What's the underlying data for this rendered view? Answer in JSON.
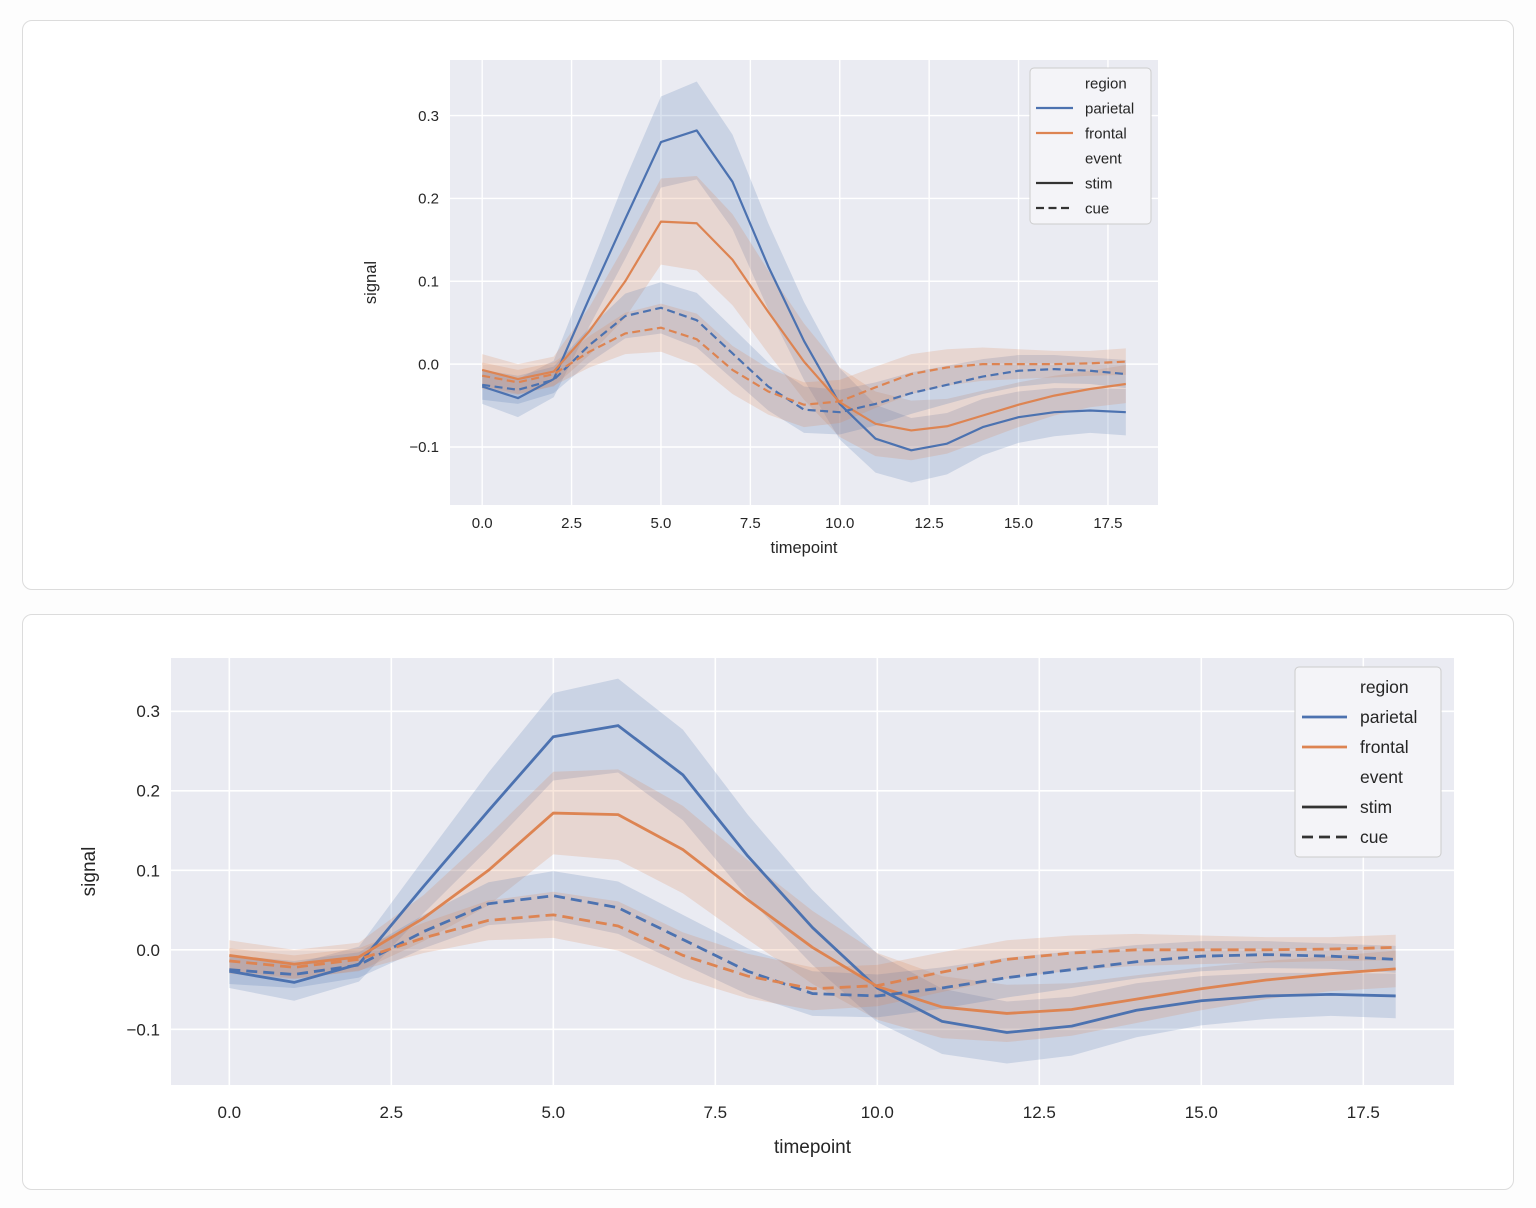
{
  "page": {
    "background": "#fdfdfd",
    "card_background": "#ffffff",
    "card_border": "#dcdcdc"
  },
  "colors": {
    "plot_background": "#eaebf2",
    "gridline": "#ffffff",
    "text": "#262626",
    "parietal": "#4c72b0",
    "frontal": "#dd8452",
    "legend_handle_neutral": "#333333",
    "legend_background": "#f4f4f8",
    "legend_border": "#cccccc",
    "band_opacity": 0.2
  },
  "chart_data": {
    "type": "line",
    "title": "",
    "xlabel": "timepoint",
    "ylabel": "signal",
    "grid": true,
    "xlim": [
      -0.9,
      18.9
    ],
    "ylim": [
      -0.17,
      0.367
    ],
    "x_tick_labels": [
      "0.0",
      "2.5",
      "5.0",
      "7.5",
      "10.0",
      "12.5",
      "15.0",
      "17.5"
    ],
    "x_tick_values": [
      0,
      2.5,
      5,
      7.5,
      10,
      12.5,
      15,
      17.5
    ],
    "y_tick_labels": [
      "0.3",
      "0.2",
      "0.1",
      "0.0",
      "−0.1"
    ],
    "y_tick_values": [
      0.3,
      0.2,
      0.1,
      0.0,
      -0.1
    ],
    "x": [
      0,
      1,
      2,
      3,
      4,
      5,
      6,
      7,
      8,
      9,
      10,
      11,
      12,
      13,
      14,
      15,
      16,
      17,
      18
    ],
    "series": [
      {
        "name": "parietal-stim",
        "region": "parietal",
        "event": "stim",
        "color": "#4c72b0",
        "style": "solid",
        "mean": [
          -0.027,
          -0.041,
          -0.018,
          0.08,
          0.175,
          0.268,
          0.282,
          0.22,
          0.118,
          0.028,
          -0.048,
          -0.09,
          -0.104,
          -0.096,
          -0.076,
          -0.064,
          -0.058,
          -0.056,
          -0.058
        ],
        "ci": [
          0.021,
          0.023,
          0.022,
          0.034,
          0.048,
          0.055,
          0.059,
          0.057,
          0.052,
          0.047,
          0.043,
          0.041,
          0.039,
          0.037,
          0.034,
          0.031,
          0.029,
          0.027,
          0.028
        ]
      },
      {
        "name": "frontal-stim",
        "region": "frontal",
        "event": "stim",
        "color": "#dd8452",
        "style": "solid",
        "mean": [
          -0.007,
          -0.018,
          -0.009,
          0.04,
          0.1,
          0.172,
          0.17,
          0.126,
          0.063,
          0.003,
          -0.046,
          -0.072,
          -0.08,
          -0.075,
          -0.062,
          -0.049,
          -0.038,
          -0.03,
          -0.024
        ],
        "ci": [
          0.019,
          0.018,
          0.018,
          0.029,
          0.044,
          0.052,
          0.057,
          0.055,
          0.05,
          0.046,
          0.042,
          0.039,
          0.036,
          0.033,
          0.03,
          0.027,
          0.024,
          0.022,
          0.023
        ]
      },
      {
        "name": "parietal-cue",
        "region": "parietal",
        "event": "cue",
        "color": "#4c72b0",
        "style": "dashed",
        "mean": [
          -0.025,
          -0.031,
          -0.019,
          0.023,
          0.058,
          0.068,
          0.053,
          0.013,
          -0.027,
          -0.055,
          -0.058,
          -0.048,
          -0.035,
          -0.025,
          -0.015,
          -0.008,
          -0.006,
          -0.008,
          -0.012
        ],
        "ci": [
          0.018,
          0.017,
          0.016,
          0.021,
          0.027,
          0.031,
          0.033,
          0.031,
          0.029,
          0.028,
          0.027,
          0.026,
          0.025,
          0.023,
          0.021,
          0.019,
          0.017,
          0.016,
          0.017
        ]
      },
      {
        "name": "frontal-cue",
        "region": "frontal",
        "event": "cue",
        "color": "#dd8452",
        "style": "dashed",
        "mean": [
          -0.014,
          -0.022,
          -0.012,
          0.015,
          0.037,
          0.044,
          0.03,
          -0.007,
          -0.033,
          -0.049,
          -0.045,
          -0.028,
          -0.012,
          -0.004,
          0.0,
          0.0,
          0.0,
          0.001,
          0.003
        ],
        "ci": [
          0.016,
          0.015,
          0.014,
          0.019,
          0.025,
          0.029,
          0.031,
          0.029,
          0.028,
          0.027,
          0.026,
          0.025,
          0.024,
          0.022,
          0.02,
          0.018,
          0.016,
          0.015,
          0.016
        ]
      }
    ],
    "legend": {
      "position": "upper right",
      "groups": [
        {
          "title": "region",
          "entries": [
            {
              "label": "parietal",
              "color": "#4c72b0",
              "style": "solid"
            },
            {
              "label": "frontal",
              "color": "#dd8452",
              "style": "solid"
            }
          ]
        },
        {
          "title": "event",
          "entries": [
            {
              "label": "stim",
              "color": "#333333",
              "style": "solid"
            },
            {
              "label": "cue",
              "color": "#333333",
              "style": "dashed"
            }
          ]
        }
      ]
    }
  }
}
